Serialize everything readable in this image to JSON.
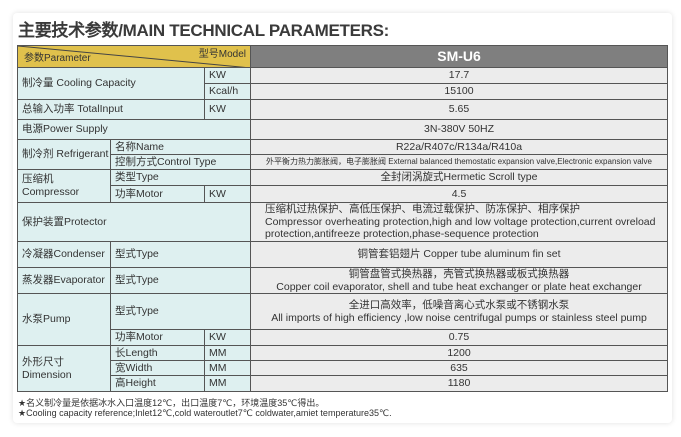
{
  "title": "主要技术参数/MAIN TECHNICAL PARAMETERS:",
  "header": {
    "parameter": "参数Parameter",
    "model_label": "型号Model",
    "model": "SM-U6"
  },
  "colors": {
    "header_left": "#e0c14c",
    "header_right": "#7f7f7f",
    "label_bg": "#def0f0",
    "value_bg": "#ececec"
  },
  "rows": {
    "cooling": {
      "label": "制冷量 Cooling Capacity",
      "unit1": "KW",
      "value1": "17.7",
      "unit2": "Kcal/h",
      "value2": "15100"
    },
    "total_input": {
      "label": "总输入功率 TotalInput",
      "unit": "KW",
      "value": "5.65"
    },
    "power_supply": {
      "label": "电源Power Supply",
      "value": "3N-380V 50HZ"
    },
    "refrigerant": {
      "label": "制冷剂 Refrigerant",
      "name_label": "名称Name",
      "name_value": "R22a/R407c/R134a/R410a",
      "control_label": "控制方式Control Type",
      "control_value": "外平衡力热力膨胀阀，电子膨胀阀 External balanced themostatic expansion valve,Electronic expansion valve"
    },
    "compressor": {
      "label_cn": "压缩机",
      "label_en": "Compressor",
      "type_label": "类型Type",
      "type_value": "全封闭涡旋式Hermetic Scroll type",
      "motor_label": "功率Motor",
      "motor_unit": "KW",
      "motor_value": "4.5"
    },
    "protector": {
      "label": "保护装置Protector",
      "line1": "压缩机过热保护、高低压保护、电流过载保护、防冻保护、相序保护",
      "line2": "Compressor overheating protection,high and low voltage protection,current ovreload",
      "line3": "protection,antifreeze protection,phase-sequence protection"
    },
    "condenser": {
      "label": "冷凝器Condenser",
      "type_label": "型式Type",
      "value": "铜管套铝翅片 Copper tube aluminum fin set"
    },
    "evaporator": {
      "label": "蒸发器Evaporator",
      "type_label": "型式Type",
      "line1": "铜管盘管式换热器，壳管式换热器或板式换热器",
      "line2": "Copper coil evaporator, shell and tube heat exchanger or plate heat exchanger"
    },
    "pump": {
      "label": "水泵Pump",
      "type_label": "型式Type",
      "line1": "全进口高效率，低噪音离心式水泵或不锈钢水泵",
      "line2": "All imports of high efficiency ,low noise centrifugal pumps or stainless steel pump",
      "motor_label": "功率Motor",
      "motor_unit": "KW",
      "motor_value": "0.75"
    },
    "dimension": {
      "label_cn": "外形尺寸",
      "label_en": "Dimension",
      "length_label": "长Length",
      "width_label": "宽Width",
      "height_label": "高Height",
      "unit": "MM",
      "length": "1200",
      "width": "635",
      "height": "1180"
    }
  },
  "footnotes": [
    "★名义制冷量是依据冰水入口温度12℃，出口温度7℃，环境温度35℃得出。",
    "★Cooling capacity reference;Inlet12℃,cold wateroutlet7℃ coldwater,amiet temperature35℃."
  ]
}
